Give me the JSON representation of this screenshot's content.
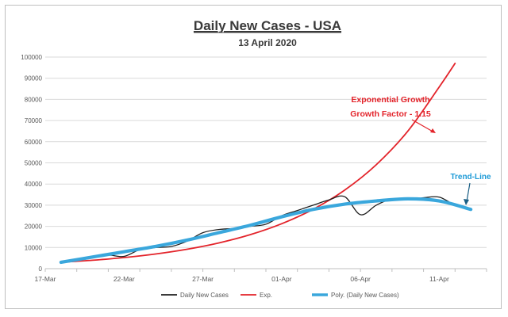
{
  "chart_data": {
    "type": "line",
    "title": "Daily New Cases - USA",
    "subtitle": "13 April 2020",
    "xlabel": "",
    "ylabel": "",
    "x_ticks": [
      "17-Mar",
      "22-Mar",
      "27-Mar",
      "01-Apr",
      "06-Apr",
      "11-Apr"
    ],
    "x_range": [
      "2020-03-17",
      "2020-04-13"
    ],
    "ylim": [
      0,
      100000
    ],
    "y_ticks": [
      0,
      10000,
      20000,
      30000,
      40000,
      50000,
      60000,
      70000,
      80000,
      90000,
      100000
    ],
    "grid": "horizontal",
    "legend_position": "bottom",
    "series": [
      {
        "name": "Daily New Cases",
        "color": "#1f1f1f",
        "points": [
          [
            "2020-03-18",
            3000
          ],
          [
            "2020-03-19",
            4200
          ],
          [
            "2020-03-20",
            5500
          ],
          [
            "2020-03-21",
            6400
          ],
          [
            "2020-03-22",
            5800
          ],
          [
            "2020-03-23",
            9000
          ],
          [
            "2020-03-24",
            10000
          ],
          [
            "2020-03-25",
            10500
          ],
          [
            "2020-03-26",
            13000
          ],
          [
            "2020-03-27",
            17000
          ],
          [
            "2020-03-28",
            18500
          ],
          [
            "2020-03-29",
            19000
          ],
          [
            "2020-03-30",
            20000
          ],
          [
            "2020-03-31",
            21000
          ],
          [
            "2020-04-01",
            25000
          ],
          [
            "2020-04-02",
            27500
          ],
          [
            "2020-04-03",
            30000
          ],
          [
            "2020-04-04",
            32500
          ],
          [
            "2020-04-05",
            34000
          ],
          [
            "2020-04-06",
            25500
          ],
          [
            "2020-04-07",
            30000
          ],
          [
            "2020-04-08",
            33000
          ],
          [
            "2020-04-09",
            32500
          ],
          [
            "2020-04-10",
            33500
          ],
          [
            "2020-04-11",
            33800
          ],
          [
            "2020-04-12",
            30000
          ],
          [
            "2020-04-13",
            28000
          ]
        ]
      },
      {
        "name": "Exp.",
        "color": "#e3232a",
        "points": [
          [
            "2020-03-18",
            3000
          ],
          [
            "2020-03-20",
            3970
          ],
          [
            "2020-03-22",
            5250
          ],
          [
            "2020-03-24",
            6940
          ],
          [
            "2020-03-26",
            9180
          ],
          [
            "2020-03-28",
            12140
          ],
          [
            "2020-03-30",
            16050
          ],
          [
            "2020-04-01",
            21230
          ],
          [
            "2020-04-03",
            28080
          ],
          [
            "2020-04-05",
            37140
          ],
          [
            "2020-04-07",
            49120
          ],
          [
            "2020-04-09",
            64960
          ],
          [
            "2020-04-11",
            85900
          ],
          [
            "2020-04-12",
            97000
          ]
        ]
      },
      {
        "name": "Poly. (Daily New Cases)",
        "color": "#3aa7dc",
        "points": [
          [
            "2020-03-18",
            3000
          ],
          [
            "2020-03-20",
            5500
          ],
          [
            "2020-03-22",
            8000
          ],
          [
            "2020-03-24",
            10500
          ],
          [
            "2020-03-26",
            13500
          ],
          [
            "2020-03-28",
            17000
          ],
          [
            "2020-03-30",
            20500
          ],
          [
            "2020-04-01",
            24500
          ],
          [
            "2020-04-03",
            28000
          ],
          [
            "2020-04-05",
            30500
          ],
          [
            "2020-04-07",
            32000
          ],
          [
            "2020-04-09",
            33000
          ],
          [
            "2020-04-11",
            32000
          ],
          [
            "2020-04-13",
            28000
          ]
        ]
      }
    ],
    "annotations": [
      {
        "name": "exp-annotation",
        "lines": [
          "Exponential Growth",
          "Growth Factor - 1.15"
        ],
        "color": "#e3232a"
      },
      {
        "name": "trend-annotation",
        "lines": [
          "Trend-Line"
        ],
        "color": "#1f9bd7"
      }
    ]
  }
}
